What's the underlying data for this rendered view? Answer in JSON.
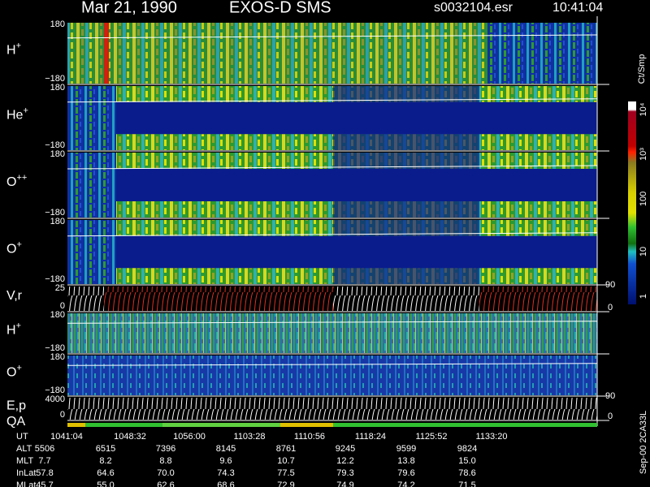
{
  "header": {
    "date": "Mar 21, 1990",
    "instrument": "EXOS-D SMS",
    "file": "s0032104.esr",
    "time": "10:41:04"
  },
  "panels": [
    {
      "ion": "H",
      "charge": "+",
      "top": "180",
      "bottom": "−180"
    },
    {
      "ion": "He",
      "charge": "+",
      "top": "180",
      "bottom": "−180"
    },
    {
      "ion": "O",
      "charge": "++",
      "top": "180",
      "bottom": "−180"
    },
    {
      "ion": "O",
      "charge": "+",
      "top": "180",
      "bottom": "−180"
    },
    {
      "ion": "V,r",
      "top": "25",
      "bottom": "0",
      "right_top": "90",
      "right_bottom": "0"
    },
    {
      "ion": "H",
      "charge": "+",
      "top": "180",
      "bottom": "−180"
    },
    {
      "ion": "O",
      "charge": "+",
      "top": "180",
      "bottom": "−180"
    },
    {
      "ion": "E,p",
      "top": "4000",
      "bottom": "0",
      "right_top": "90",
      "right_bottom": "0"
    }
  ],
  "qa_label": "QA",
  "colorbar": {
    "unit": "Ct/Smp",
    "labels": [
      "10⁴",
      "10³",
      "100",
      "10",
      "1"
    ]
  },
  "footer": {
    "rows": [
      {
        "name": "UT",
        "values": [
          "1041:04",
          "1048:32",
          "1056:00",
          "1103:28",
          "1110:56",
          "1118:24",
          "1125:52",
          "1133:20"
        ]
      },
      {
        "name": "ALT",
        "values": [
          "5506",
          "6515",
          "7396",
          "8145",
          "8761",
          "9245",
          "9599",
          "9824"
        ]
      },
      {
        "name": "MLT",
        "values": [
          "7.7",
          "8.2",
          "8.8",
          "9.6",
          "10.7",
          "12.2",
          "13.8",
          "15.0"
        ]
      },
      {
        "name": "InLat",
        "values": [
          "57.8",
          "64.6",
          "70.0",
          "74.3",
          "77.5",
          "79.3",
          "79.6",
          "78.6"
        ]
      },
      {
        "name": "MLat",
        "values": [
          "45.7",
          "55.0",
          "62.6",
          "68.6",
          "72.9",
          "74.9",
          "74.2",
          "71.5"
        ]
      }
    ]
  },
  "side_note": "Sep-00 2CA33L"
}
